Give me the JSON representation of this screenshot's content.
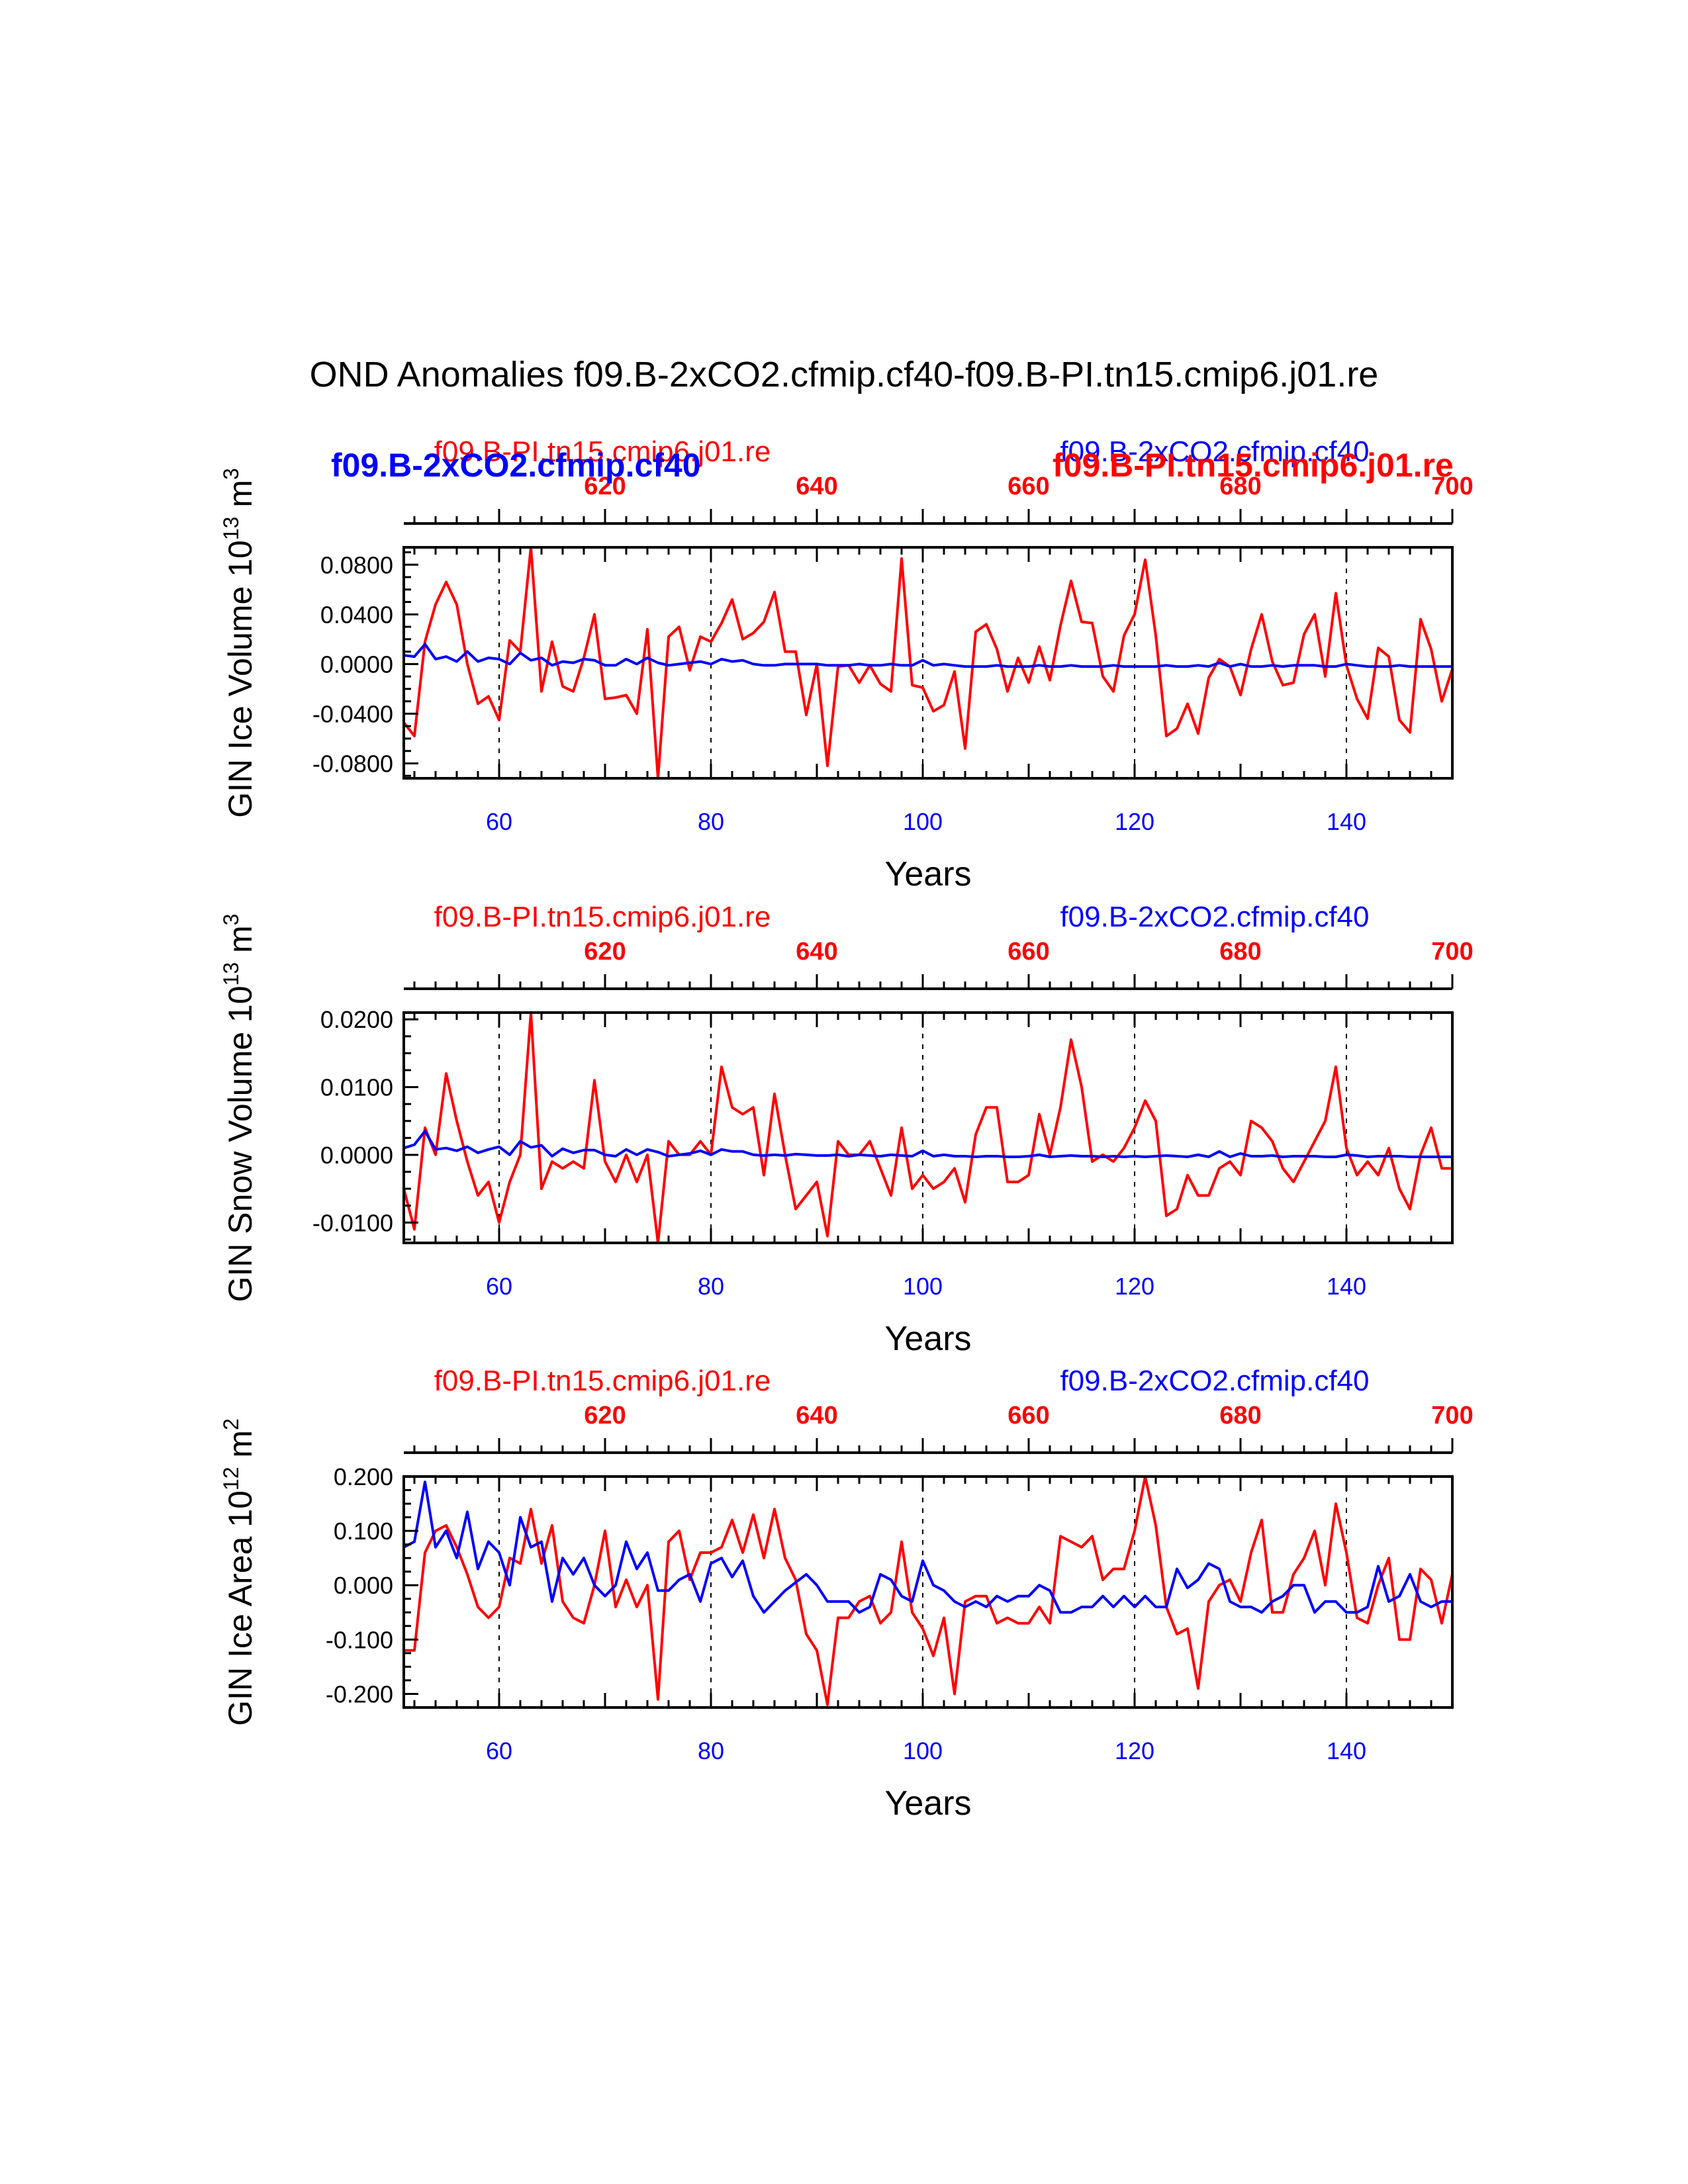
{
  "main_title": "OND Anomalies f09.B-2xCO2.cfmip.cf40-f09.B-PI.tn15.cmip6.j01.re",
  "colors": {
    "ctrl": "#ff0000",
    "exp": "#0000ff",
    "axis": "#000000"
  },
  "overlay_labels": {
    "exp_bold": "f09.B-2xCO2.cfmip.cf40",
    "ctrl_bold": "f09.B-PI.tn15.cmip6.j01.re"
  },
  "chart_data": [
    {
      "type": "line",
      "title_left": "f09.B-PI.tn15.cmip6.j01.re",
      "title_right": "f09.B-2xCO2.cfmip.cf40",
      "ylabel_main": "GIN Ice Volume 10",
      "ylabel_exp": "13",
      "ylabel_unit": " m",
      "ylabel_unit_exp": "3",
      "xlabel": "Years",
      "xlim": [
        51,
        150
      ],
      "ylim": [
        -0.092,
        0.094
      ],
      "yticks": [
        "-0.0800",
        "-0.0400",
        "0.0000",
        "0.0400",
        "0.0800"
      ],
      "yticks_val": [
        -0.08,
        -0.04,
        0,
        0.04,
        0.08
      ],
      "xticks_bottom": [
        "60",
        "80",
        "100",
        "120",
        "140"
      ],
      "xticks_bottom_val": [
        60,
        80,
        100,
        120,
        140
      ],
      "xticks_top": [
        "620",
        "640",
        "660",
        "680",
        "700"
      ],
      "xticks_top_val": [
        70,
        90,
        110,
        130,
        150
      ],
      "vlines": [
        60,
        80,
        100,
        120,
        140
      ],
      "series": [
        {
          "name": "f09.B-PI.tn15.cmip6.j01.re",
          "color": "#ff0000",
          "values": [
            -0.047,
            -0.058,
            0.018,
            0.048,
            0.066,
            0.048,
            0.0,
            -0.032,
            -0.026,
            -0.045,
            0.019,
            0.01,
            0.094,
            -0.022,
            0.018,
            -0.018,
            -0.022,
            0.005,
            0.04,
            -0.028,
            -0.027,
            -0.025,
            -0.04,
            0.028,
            -0.092,
            0.022,
            0.03,
            -0.005,
            0.022,
            0.018,
            0.033,
            0.052,
            0.02,
            0.025,
            0.034,
            0.058,
            0.01,
            0.01,
            -0.041,
            0.0,
            -0.082,
            -0.002,
            -0.001,
            -0.015,
            -0.001,
            -0.016,
            -0.022,
            0.085,
            -0.017,
            -0.019,
            -0.038,
            -0.033,
            -0.006,
            -0.068,
            0.026,
            0.032,
            0.012,
            -0.022,
            0.005,
            -0.015,
            0.014,
            -0.013,
            0.031,
            0.067,
            0.034,
            0.033,
            -0.01,
            -0.022,
            0.023,
            0.04,
            0.084,
            0.023,
            -0.058,
            -0.052,
            -0.032,
            -0.056,
            -0.011,
            0.004,
            -0.002,
            -0.025,
            0.012,
            0.04,
            0.002,
            -0.017,
            -0.015,
            0.024,
            0.04,
            -0.01,
            0.057,
            -0.001,
            -0.028,
            -0.044,
            0.013,
            0.006,
            -0.045,
            -0.055,
            0.036,
            0.012,
            -0.03,
            -0.004
          ]
        },
        {
          "name": "f09.B-2xCO2.cfmip.cf40",
          "color": "#0000ff",
          "values": [
            0.007,
            0.006,
            0.016,
            0.004,
            0.006,
            0.002,
            0.01,
            0.002,
            0.005,
            0.004,
            0.0,
            0.009,
            0.003,
            0.005,
            -0.001,
            0.002,
            0.001,
            0.004,
            0.003,
            -0.001,
            -0.001,
            0.004,
            0.0,
            0.005,
            0.001,
            -0.001,
            0.0,
            0.001,
            0.002,
            0.0,
            0.004,
            0.002,
            0.003,
            0.0,
            -0.001,
            -0.001,
            0.0,
            0.0,
            0.0,
            0.0,
            -0.001,
            -0.001,
            -0.001,
            0.0,
            -0.001,
            -0.001,
            0.0,
            -0.001,
            -0.001,
            0.003,
            -0.001,
            0.0,
            -0.001,
            -0.002,
            -0.002,
            -0.002,
            -0.001,
            -0.002,
            -0.002,
            -0.002,
            -0.001,
            -0.002,
            -0.002,
            -0.001,
            -0.002,
            -0.002,
            -0.002,
            -0.001,
            -0.002,
            -0.002,
            -0.002,
            -0.002,
            -0.001,
            -0.002,
            -0.002,
            -0.001,
            -0.002,
            0.001,
            -0.002,
            0.0,
            -0.002,
            -0.002,
            -0.001,
            -0.002,
            -0.001,
            -0.001,
            -0.001,
            -0.002,
            -0.002,
            0.0,
            -0.001,
            -0.002,
            -0.002,
            -0.002,
            -0.001,
            -0.002,
            -0.002,
            -0.002,
            -0.002,
            -0.002
          ]
        }
      ]
    },
    {
      "type": "line",
      "title_left": "f09.B-PI.tn15.cmip6.j01.re",
      "title_right": "f09.B-2xCO2.cfmip.cf40",
      "ylabel_main": "GIN Snow Volume 10",
      "ylabel_exp": "13",
      "ylabel_unit": " m",
      "ylabel_unit_exp": "3",
      "xlabel": "Years",
      "xlim": [
        51,
        150
      ],
      "ylim": [
        -0.013,
        0.021
      ],
      "yticks": [
        "-0.0100",
        "0.0000",
        "0.0100",
        "0.0200"
      ],
      "yticks_val": [
        -0.01,
        0,
        0.01,
        0.02
      ],
      "xticks_bottom": [
        "60",
        "80",
        "100",
        "120",
        "140"
      ],
      "xticks_bottom_val": [
        60,
        80,
        100,
        120,
        140
      ],
      "xticks_top": [
        "620",
        "640",
        "660",
        "680",
        "700"
      ],
      "xticks_top_val": [
        70,
        90,
        110,
        130,
        150
      ],
      "vlines": [
        60,
        80,
        100,
        120,
        140
      ],
      "series": [
        {
          "name": "f09.B-PI.tn15.cmip6.j01.re",
          "color": "#ff0000",
          "values": [
            -0.005,
            -0.011,
            0.004,
            0.0,
            0.012,
            0.005,
            -0.001,
            -0.006,
            -0.004,
            -0.01,
            -0.004,
            0.0,
            0.021,
            -0.005,
            -0.001,
            -0.002,
            -0.001,
            -0.002,
            0.011,
            -0.001,
            -0.004,
            0.0,
            -0.004,
            0.0,
            -0.013,
            0.002,
            0.0,
            0.0,
            0.002,
            0.0,
            0.013,
            0.007,
            0.006,
            0.007,
            -0.003,
            0.009,
            0.0,
            -0.008,
            -0.006,
            -0.004,
            -0.012,
            0.002,
            0.0,
            0.0,
            0.002,
            -0.002,
            -0.006,
            0.004,
            -0.005,
            -0.003,
            -0.005,
            -0.004,
            -0.002,
            -0.007,
            0.003,
            0.007,
            0.007,
            -0.004,
            -0.004,
            -0.003,
            0.006,
            0.0,
            0.007,
            0.017,
            0.01,
            -0.001,
            0.0,
            -0.001,
            0.001,
            0.004,
            0.008,
            0.005,
            -0.009,
            -0.008,
            -0.003,
            -0.006,
            -0.006,
            -0.002,
            -0.001,
            -0.003,
            0.005,
            0.004,
            0.002,
            -0.002,
            -0.004,
            -0.001,
            0.002,
            0.005,
            0.013,
            0.001,
            -0.003,
            -0.001,
            -0.003,
            0.001,
            -0.005,
            -0.008,
            0.0,
            0.004,
            -0.002,
            -0.002
          ]
        },
        {
          "name": "f09.B-2xCO2.cfmip.cf40",
          "color": "#0000ff",
          "values": [
            0.001,
            0.0015,
            0.0035,
            0.0008,
            0.001,
            0.0006,
            0.0012,
            0.0003,
            0.0008,
            0.0012,
            0.0,
            0.002,
            0.0011,
            0.0014,
            -0.0002,
            0.0009,
            0.0003,
            0.0007,
            0.0007,
            0.0,
            -0.0002,
            0.0008,
            0.0,
            0.0008,
            0.0004,
            -0.0002,
            0.0,
            0.0002,
            0.0006,
            0.0,
            0.0008,
            0.0005,
            0.0005,
            0.0,
            -0.0001,
            0.0,
            -0.0001,
            0.0001,
            0.0,
            -0.0001,
            -0.0001,
            0.0,
            -0.0002,
            0.0,
            -0.0001,
            -0.0002,
            0.0,
            -0.0001,
            -0.0002,
            0.0006,
            -0.0002,
            0.0,
            -0.0002,
            -0.0002,
            -0.0003,
            -0.0002,
            -0.0002,
            -0.0003,
            -0.0003,
            -0.0002,
            0.0,
            -0.0003,
            -0.0002,
            -0.0001,
            -0.0002,
            -0.0002,
            -0.0003,
            -0.0002,
            -0.0003,
            -0.0002,
            -0.0003,
            -0.0002,
            -0.0001,
            -0.0002,
            -0.0003,
            0.0,
            -0.0003,
            0.0005,
            -0.0003,
            0.0002,
            -0.0002,
            -0.0002,
            -0.0001,
            -0.0003,
            -0.0002,
            -0.0002,
            -0.0002,
            -0.0003,
            -0.0003,
            0.0,
            -0.0001,
            -0.0003,
            -0.0002,
            -0.0002,
            -0.0002,
            -0.0003,
            -0.0003,
            -0.0003,
            -0.0003,
            -0.0003
          ]
        }
      ]
    },
    {
      "type": "line",
      "title_left": "f09.B-PI.tn15.cmip6.j01.re",
      "title_right": "f09.B-2xCO2.cfmip.cf40",
      "ylabel_main": "GIN Ice Area 10",
      "ylabel_exp": "12",
      "ylabel_unit": " m",
      "ylabel_unit_exp": "2",
      "xlabel": "Years",
      "xlim": [
        51,
        150
      ],
      "ylim": [
        -0.225,
        0.2
      ],
      "yticks": [
        "-0.200",
        "-0.100",
        "0.000",
        "0.100",
        "0.200"
      ],
      "yticks_val": [
        -0.2,
        -0.1,
        0,
        0.1,
        0.2
      ],
      "xticks_bottom": [
        "60",
        "80",
        "100",
        "120",
        "140"
      ],
      "xticks_bottom_val": [
        60,
        80,
        100,
        120,
        140
      ],
      "xticks_top": [
        "620",
        "640",
        "660",
        "680",
        "700"
      ],
      "xticks_top_val": [
        70,
        90,
        110,
        130,
        150
      ],
      "vlines": [
        60,
        80,
        100,
        120,
        140
      ],
      "series": [
        {
          "name": "f09.B-PI.tn15.cmip6.j01.re",
          "color": "#ff0000",
          "values": [
            -0.12,
            -0.12,
            0.06,
            0.1,
            0.11,
            0.07,
            0.02,
            -0.04,
            -0.06,
            -0.04,
            0.05,
            0.04,
            0.14,
            0.04,
            0.11,
            -0.03,
            -0.06,
            -0.07,
            0.0,
            0.1,
            -0.04,
            0.01,
            -0.04,
            0.0,
            -0.21,
            0.08,
            0.1,
            0.01,
            0.06,
            0.06,
            0.07,
            0.12,
            0.06,
            0.13,
            0.05,
            0.14,
            0.05,
            0.01,
            -0.09,
            -0.12,
            -0.22,
            -0.06,
            -0.06,
            -0.03,
            -0.02,
            -0.07,
            -0.05,
            0.08,
            -0.05,
            -0.08,
            -0.13,
            -0.06,
            -0.2,
            -0.03,
            -0.02,
            -0.02,
            -0.07,
            -0.06,
            -0.07,
            -0.07,
            -0.04,
            -0.07,
            0.09,
            0.08,
            0.07,
            0.09,
            0.01,
            0.03,
            0.03,
            0.1,
            0.2,
            0.11,
            -0.04,
            -0.09,
            -0.08,
            -0.19,
            -0.03,
            0.0,
            0.01,
            -0.03,
            0.06,
            0.12,
            -0.05,
            -0.05,
            0.02,
            0.05,
            0.1,
            0.0,
            0.15,
            0.06,
            -0.06,
            -0.07,
            0.0,
            0.05,
            -0.1,
            -0.1,
            0.03,
            0.01,
            -0.07,
            0.02
          ]
        },
        {
          "name": "f09.B-2xCO2.cfmip.cf40",
          "color": "#0000ff",
          "values": [
            0.07,
            0.08,
            0.19,
            0.07,
            0.1,
            0.05,
            0.135,
            0.03,
            0.08,
            0.06,
            0.0,
            0.125,
            0.07,
            0.08,
            -0.03,
            0.05,
            0.02,
            0.05,
            0.0,
            -0.02,
            0.0,
            0.08,
            0.03,
            0.06,
            -0.01,
            -0.01,
            0.01,
            0.02,
            -0.03,
            0.04,
            0.05,
            0.015,
            0.045,
            -0.02,
            -0.05,
            -0.03,
            -0.01,
            0.005,
            0.02,
            0.0,
            -0.03,
            -0.03,
            -0.03,
            -0.05,
            -0.04,
            0.02,
            0.01,
            -0.02,
            -0.03,
            0.045,
            0.0,
            -0.01,
            -0.03,
            -0.04,
            -0.03,
            -0.04,
            -0.02,
            -0.03,
            -0.02,
            -0.02,
            0.0,
            -0.01,
            -0.05,
            -0.05,
            -0.04,
            -0.04,
            -0.02,
            -0.04,
            -0.02,
            -0.04,
            -0.02,
            -0.04,
            -0.04,
            0.03,
            -0.005,
            0.01,
            0.04,
            0.03,
            -0.03,
            -0.04,
            -0.04,
            -0.05,
            -0.03,
            -0.02,
            0.0,
            0.0,
            -0.05,
            -0.03,
            -0.03,
            -0.05,
            -0.05,
            -0.04,
            0.035,
            -0.03,
            -0.02,
            0.02,
            -0.03,
            -0.04,
            -0.03,
            -0.03
          ]
        }
      ]
    }
  ]
}
